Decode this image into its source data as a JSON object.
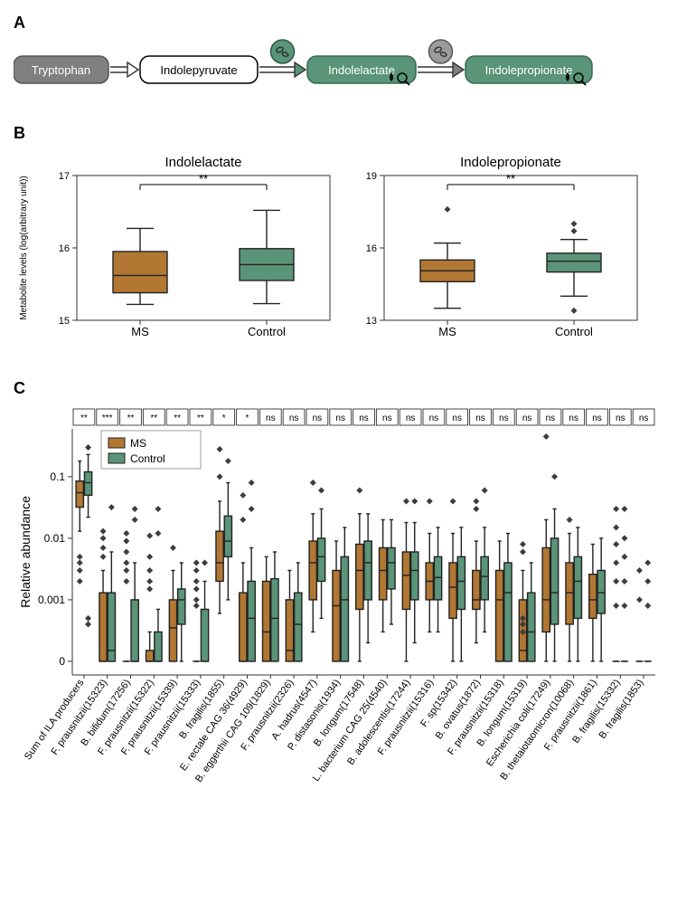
{
  "colors": {
    "ms": "#a46b2a",
    "control": "#4f8a6f",
    "ms_fill": "#b17733",
    "control_fill": "#5a9479",
    "gray": "#707070",
    "darkgray": "#4d4d4d",
    "text": "#000000",
    "axis": "#000000",
    "marker": "#3d3d3d",
    "spine": "#333333"
  },
  "panelA": {
    "label": "A",
    "nodes": [
      {
        "text": "Tryptophan",
        "bg": "#808080",
        "fg": "#ffffff",
        "border": "#555555"
      },
      {
        "text": "Indolepyruvate",
        "bg": "#ffffff",
        "fg": "#000000",
        "border": "#000000"
      },
      {
        "text": "Indolelactate",
        "bg": "#5a9479",
        "fg": "#ffffff",
        "border": "#356b52"
      },
      {
        "text": "Indolepropionate",
        "bg": "#5a9479",
        "fg": "#ffffff",
        "border": "#356b52"
      }
    ],
    "arrow_colors": [
      "#ffffff",
      "#5a9479",
      "#808080"
    ],
    "circle_colors": [
      {
        "fill": "#5a9479",
        "stroke": "#2d5943"
      },
      {
        "fill": "#9b9b9b",
        "stroke": "#555555"
      }
    ]
  },
  "panelB": {
    "label": "B",
    "ylabel": "Metabolite levels (log(arbitrary unit))",
    "charts": [
      {
        "title": "Indolelactate",
        "ymin": 15,
        "ymax": 17,
        "yticks": [
          15,
          16,
          17
        ],
        "sig": "**",
        "groups": [
          {
            "name": "MS",
            "color_key": "ms",
            "q1": 15.38,
            "med": 15.62,
            "q3": 15.95,
            "lo": 15.22,
            "hi": 16.27,
            "outliers": []
          },
          {
            "name": "Control",
            "color_key": "control",
            "q1": 15.55,
            "med": 15.77,
            "q3": 15.99,
            "lo": 15.23,
            "hi": 16.52,
            "outliers": []
          }
        ]
      },
      {
        "title": "Indolepropionate",
        "ymin": 13,
        "ymax": 19,
        "yticks": [
          13,
          16,
          19
        ],
        "sig": "**",
        "groups": [
          {
            "name": "MS",
            "color_key": "ms",
            "q1": 14.6,
            "med": 15.05,
            "q3": 15.5,
            "lo": 13.5,
            "hi": 16.2,
            "outliers": [
              17.6
            ]
          },
          {
            "name": "Control",
            "color_key": "control",
            "q1": 15.0,
            "med": 15.45,
            "q3": 15.78,
            "lo": 14.0,
            "hi": 16.35,
            "outliers": [
              17.0,
              16.7,
              13.4
            ]
          }
        ]
      }
    ]
  },
  "panelC": {
    "label": "C",
    "ylabel": "Relative abundance",
    "legend": [
      "MS",
      "Control"
    ],
    "yticks": [
      0.0001,
      0.001,
      0.01,
      0.1
    ],
    "ytick_labels": [
      "0",
      "0.001",
      "0.01",
      "0.1"
    ],
    "ymin_plot": 6e-05,
    "ymax_plot": 0.6,
    "species": [
      {
        "name": "Sum of ILA producers",
        "sig": "**",
        "ms": {
          "q1": 0.032,
          "med": 0.055,
          "q3": 0.085,
          "lo": 0.013,
          "hi": 0.18,
          "out": [
            0.005,
            0.004,
            0.003,
            0.002
          ]
        },
        "ctrl": {
          "q1": 0.05,
          "med": 0.08,
          "q3": 0.12,
          "lo": 0.022,
          "hi": 0.23,
          "out": [
            0.3,
            0.0005,
            0.0004
          ]
        }
      },
      {
        "name": "F. prausnitzii(15323)",
        "sig": "***",
        "ms": {
          "q1": 0.0001,
          "med": 0.0001,
          "q3": 0.0013,
          "lo": 0.0001,
          "hi": 0.003,
          "out": [
            0.013,
            0.01,
            0.007,
            0.005
          ]
        },
        "ctrl": {
          "q1": 0.0001,
          "med": 0.00015,
          "q3": 0.0013,
          "lo": 0.0001,
          "hi": 0.006,
          "out": [
            0.032
          ]
        }
      },
      {
        "name": "B. bifidum(17256)",
        "sig": "**",
        "ms": {
          "q1": 0.0001,
          "med": 0.0001,
          "q3": 0.0001,
          "lo": 0.0001,
          "hi": 0.0001,
          "out": [
            0.012,
            0.009,
            0.006,
            0.004,
            0.003,
            0.002
          ]
        },
        "ctrl": {
          "q1": 0.0001,
          "med": 0.0001,
          "q3": 0.001,
          "lo": 0.0001,
          "hi": 0.004,
          "out": [
            0.03,
            0.02
          ]
        }
      },
      {
        "name": "F. prausnitzii(15322)",
        "sig": "**",
        "ms": {
          "q1": 0.0001,
          "med": 0.0001,
          "q3": 0.00015,
          "lo": 0.0001,
          "hi": 0.0003,
          "out": [
            0.011,
            0.005,
            0.003,
            0.002,
            0.0015
          ]
        },
        "ctrl": {
          "q1": 0.0001,
          "med": 0.0001,
          "q3": 0.0003,
          "lo": 0.0001,
          "hi": 0.0007,
          "out": [
            0.03,
            0.012
          ]
        }
      },
      {
        "name": "F. prausnitzii(15339)",
        "sig": "**",
        "ms": {
          "q1": 0.0001,
          "med": 0.00035,
          "q3": 0.001,
          "lo": 0.0001,
          "hi": 0.003,
          "out": [
            0.007
          ]
        },
        "ctrl": {
          "q1": 0.0004,
          "med": 0.001,
          "q3": 0.0015,
          "lo": 0.0001,
          "hi": 0.004,
          "out": []
        }
      },
      {
        "name": "F. prausnitzii(15333)",
        "sig": "**",
        "ms": {
          "q1": 0.0001,
          "med": 0.0001,
          "q3": 0.0001,
          "lo": 0.0001,
          "hi": 0.0001,
          "out": [
            0.004,
            0.003,
            0.002,
            0.0015,
            0.001,
            0.0008
          ]
        },
        "ctrl": {
          "q1": 0.0001,
          "med": 0.0001,
          "q3": 0.0007,
          "lo": 0.0001,
          "hi": 0.002,
          "out": [
            0.004
          ]
        }
      },
      {
        "name": "B. fragilis(1855)",
        "sig": "*",
        "ms": {
          "q1": 0.002,
          "med": 0.004,
          "q3": 0.013,
          "lo": 0.0006,
          "hi": 0.04,
          "out": [
            0.28,
            0.1
          ]
        },
        "ctrl": {
          "q1": 0.005,
          "med": 0.009,
          "q3": 0.023,
          "lo": 0.001,
          "hi": 0.08,
          "out": [
            0.18
          ]
        }
      },
      {
        "name": "E. rectale CAG 36(4929)",
        "sig": "*",
        "ms": {
          "q1": 0.0001,
          "med": 0.0001,
          "q3": 0.0013,
          "lo": 0.0001,
          "hi": 0.004,
          "out": [
            0.05,
            0.02
          ]
        },
        "ctrl": {
          "q1": 0.0001,
          "med": 0.0005,
          "q3": 0.002,
          "lo": 0.0001,
          "hi": 0.007,
          "out": [
            0.08,
            0.03
          ]
        }
      },
      {
        "name": "B. eggerthii CAG 109(1829)",
        "sig": "ns",
        "ms": {
          "q1": 0.0001,
          "med": 0.0003,
          "q3": 0.002,
          "lo": 0.0001,
          "hi": 0.005,
          "out": []
        },
        "ctrl": {
          "q1": 0.0001,
          "med": 0.0005,
          "q3": 0.0022,
          "lo": 0.0001,
          "hi": 0.006,
          "out": []
        }
      },
      {
        "name": "F. prausnitzii(2326)",
        "sig": "ns",
        "ms": {
          "q1": 0.0001,
          "med": 0.00015,
          "q3": 0.001,
          "lo": 0.0001,
          "hi": 0.003,
          "out": []
        },
        "ctrl": {
          "q1": 0.0001,
          "med": 0.0004,
          "q3": 0.0013,
          "lo": 0.0001,
          "hi": 0.004,
          "out": []
        }
      },
      {
        "name": "A. hadrus(4547)",
        "sig": "ns",
        "ms": {
          "q1": 0.001,
          "med": 0.004,
          "q3": 0.009,
          "lo": 0.0003,
          "hi": 0.025,
          "out": [
            0.08
          ]
        },
        "ctrl": {
          "q1": 0.002,
          "med": 0.005,
          "q3": 0.01,
          "lo": 0.0005,
          "hi": 0.03,
          "out": [
            0.06
          ]
        }
      },
      {
        "name": "P. distasonis(1934)",
        "sig": "ns",
        "ms": {
          "q1": 0.0001,
          "med": 0.0008,
          "q3": 0.003,
          "lo": 0.0001,
          "hi": 0.009,
          "out": []
        },
        "ctrl": {
          "q1": 0.0001,
          "med": 0.001,
          "q3": 0.005,
          "lo": 0.0001,
          "hi": 0.015,
          "out": []
        }
      },
      {
        "name": "B. longum(17548)",
        "sig": "ns",
        "ms": {
          "q1": 0.0007,
          "med": 0.003,
          "q3": 0.008,
          "lo": 0.0001,
          "hi": 0.025,
          "out": [
            0.06
          ]
        },
        "ctrl": {
          "q1": 0.001,
          "med": 0.004,
          "q3": 0.009,
          "lo": 0.0002,
          "hi": 0.025,
          "out": []
        }
      },
      {
        "name": "L. bacterium CAG 25(4540)",
        "sig": "ns",
        "ms": {
          "q1": 0.001,
          "med": 0.003,
          "q3": 0.007,
          "lo": 0.0003,
          "hi": 0.02,
          "out": []
        },
        "ctrl": {
          "q1": 0.0015,
          "med": 0.004,
          "q3": 0.007,
          "lo": 0.0004,
          "hi": 0.02,
          "out": []
        }
      },
      {
        "name": "B. adolescentis(17244)",
        "sig": "ns",
        "ms": {
          "q1": 0.0007,
          "med": 0.0025,
          "q3": 0.006,
          "lo": 0.0001,
          "hi": 0.018,
          "out": [
            0.04
          ]
        },
        "ctrl": {
          "q1": 0.001,
          "med": 0.003,
          "q3": 0.006,
          "lo": 0.0002,
          "hi": 0.018,
          "out": [
            0.04
          ]
        }
      },
      {
        "name": "F. prausnitzii(15316)",
        "sig": "ns",
        "ms": {
          "q1": 0.001,
          "med": 0.002,
          "q3": 0.004,
          "lo": 0.0003,
          "hi": 0.012,
          "out": [
            0.04
          ]
        },
        "ctrl": {
          "q1": 0.001,
          "med": 0.0023,
          "q3": 0.005,
          "lo": 0.0003,
          "hi": 0.015,
          "out": []
        }
      },
      {
        "name": "F. sp(15342)",
        "sig": "ns",
        "ms": {
          "q1": 0.0005,
          "med": 0.0016,
          "q3": 0.004,
          "lo": 0.0001,
          "hi": 0.012,
          "out": [
            0.04
          ]
        },
        "ctrl": {
          "q1": 0.0007,
          "med": 0.002,
          "q3": 0.005,
          "lo": 0.0001,
          "hi": 0.015,
          "out": []
        }
      },
      {
        "name": "B. ovatus(1872)",
        "sig": "ns",
        "ms": {
          "q1": 0.0007,
          "med": 0.001,
          "q3": 0.003,
          "lo": 0.0002,
          "hi": 0.009,
          "out": [
            0.04,
            0.03
          ]
        },
        "ctrl": {
          "q1": 0.001,
          "med": 0.0024,
          "q3": 0.005,
          "lo": 0.0003,
          "hi": 0.015,
          "out": [
            0.06
          ]
        }
      },
      {
        "name": "F. prausnitzii(15318)",
        "sig": "ns",
        "ms": {
          "q1": 0.0001,
          "med": 0.001,
          "q3": 0.003,
          "lo": 0.0001,
          "hi": 0.009,
          "out": []
        },
        "ctrl": {
          "q1": 0.0001,
          "med": 0.0013,
          "q3": 0.004,
          "lo": 0.0001,
          "hi": 0.012,
          "out": []
        }
      },
      {
        "name": "B. longum(15319)",
        "sig": "ns",
        "ms": {
          "q1": 0.0001,
          "med": 0.00015,
          "q3": 0.001,
          "lo": 0.0001,
          "hi": 0.003,
          "out": [
            0.008,
            0.006,
            0.0005,
            0.0004,
            0.0003
          ]
        },
        "ctrl": {
          "q1": 0.0001,
          "med": 0.0003,
          "q3": 0.0013,
          "lo": 0.0001,
          "hi": 0.004,
          "out": []
        }
      },
      {
        "name": "Escherichia coli(17249)",
        "sig": "ns",
        "ms": {
          "q1": 0.0003,
          "med": 0.001,
          "q3": 0.007,
          "lo": 0.0001,
          "hi": 0.02,
          "out": [
            0.45
          ]
        },
        "ctrl": {
          "q1": 0.0004,
          "med": 0.0013,
          "q3": 0.01,
          "lo": 0.0001,
          "hi": 0.03,
          "out": [
            0.1
          ]
        }
      },
      {
        "name": "B. thetaiotaomicron(10068)",
        "sig": "ns",
        "ms": {
          "q1": 0.0004,
          "med": 0.0013,
          "q3": 0.004,
          "lo": 0.0001,
          "hi": 0.012,
          "out": [
            0.02
          ]
        },
        "ctrl": {
          "q1": 0.0005,
          "med": 0.002,
          "q3": 0.005,
          "lo": 0.0001,
          "hi": 0.015,
          "out": []
        }
      },
      {
        "name": "F. prausnitzii(1861)",
        "sig": "ns",
        "ms": {
          "q1": 0.0005,
          "med": 0.001,
          "q3": 0.0026,
          "lo": 0.0001,
          "hi": 0.008,
          "out": []
        },
        "ctrl": {
          "q1": 0.0006,
          "med": 0.0013,
          "q3": 0.003,
          "lo": 0.0001,
          "hi": 0.01,
          "out": []
        }
      },
      {
        "name": "B. fragilis(15332)",
        "sig": "ns",
        "ms": {
          "q1": 0.0001,
          "med": 0.0001,
          "q3": 0.0001,
          "lo": 0.0001,
          "hi": 0.0001,
          "out": [
            0.03,
            0.015,
            0.008,
            0.004,
            0.002,
            0.0008
          ]
        },
        "ctrl": {
          "q1": 0.0001,
          "med": 0.0001,
          "q3": 0.0001,
          "lo": 0.0001,
          "hi": 0.0001,
          "out": [
            0.03,
            0.01,
            0.005,
            0.002,
            0.0008
          ]
        }
      },
      {
        "name": "B. fragilis(1853)",
        "sig": "ns",
        "ms": {
          "q1": 0.0001,
          "med": 0.0001,
          "q3": 0.0001,
          "lo": 0.0001,
          "hi": 0.0001,
          "out": [
            0.003,
            0.001
          ]
        },
        "ctrl": {
          "q1": 0.0001,
          "med": 0.0001,
          "q3": 0.0001,
          "lo": 0.0001,
          "hi": 0.0001,
          "out": [
            0.004,
            0.002,
            0.0008
          ]
        }
      }
    ]
  }
}
